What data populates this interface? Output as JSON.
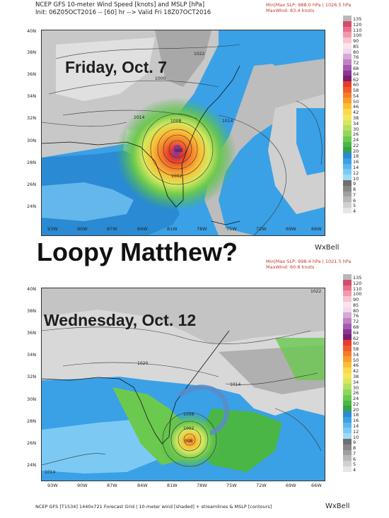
{
  "top_panel": {
    "header_line1": "NCEP GFS 10-meter Wind Speed [knots] and MSLP [hPa]",
    "header_line2": "Init: 06Z05OCT2016 -- [60] hr --> Valid Fri 18Z07OCT2016",
    "minmax_line1": "Min|Max SLP: 988.0 hPa | 1026.5 hPa",
    "minmax_line2": "MaxWind: 83.4 knots",
    "date_overlay": "Friday, Oct. 7",
    "isobar_labels": [
      "1022",
      "1000",
      "1008",
      "1014",
      "1014",
      "1014",
      "988",
      "1000",
      "1002",
      "1008"
    ]
  },
  "title": "Loopy Matthew?",
  "bottom_panel": {
    "minmax_line1": "Min|Max SLP: 998.4 hPa | 1021.5 hPa",
    "minmax_line2": "MaxWind: 60.6 knots",
    "date_overlay": "Wednesday, Oct. 12",
    "isobar_labels": [
      "1022",
      "1020",
      "1014",
      "1008",
      "1002",
      "998",
      "1014",
      "1002"
    ]
  },
  "brand": "WxBell",
  "footer": "NCEP GFS [T1534] 1440x721 Forecast Grid | 10-meter wind [shaded] + streamlines & MSLP [contours]",
  "axes": {
    "lat_labels_top": [
      "40N",
      "38N",
      "36N",
      "34N",
      "32N",
      "30N",
      "28N",
      "26N",
      "24N"
    ],
    "lat_labels_bottom": [
      "40N",
      "38N",
      "36N",
      "34N",
      "32N",
      "30N",
      "28N",
      "26N",
      "24N"
    ],
    "lon_labels": [
      "93W",
      "90W",
      "87W",
      "84W",
      "81W",
      "78W",
      "75W",
      "72W",
      "69W",
      "66W"
    ]
  },
  "colorbar": {
    "values": [
      "135",
      "120",
      "110",
      "100",
      "90",
      "85",
      "80",
      "76",
      "72",
      "68",
      "64",
      "62",
      "60",
      "58",
      "54",
      "50",
      "46",
      "42",
      "38",
      "34",
      "30",
      "26",
      "24",
      "22",
      "20",
      "18",
      "16",
      "14",
      "12",
      "10",
      "9",
      "8",
      "7",
      "6",
      "5",
      "4"
    ],
    "colors": [
      "#b8b8b8",
      "#d24c6b",
      "#e8708a",
      "#f39aa9",
      "#f6c5d0",
      "#fde3ea",
      "#f0d9ec",
      "#d7a9d6",
      "#c082c5",
      "#a45baf",
      "#8c3494",
      "#7b1f6d",
      "#e93b2c",
      "#ef5b2c",
      "#f47d2b",
      "#f99d2d",
      "#fbbd36",
      "#fcd84a",
      "#f5e65a",
      "#d6e85d",
      "#b4e060",
      "#8fd65a",
      "#6cc94f",
      "#4ab645",
      "#34a348",
      "#2a8ad3",
      "#3aa1e6",
      "#5ab6ef",
      "#7ccaf3",
      "#9edbf6",
      "#6f6f6f",
      "#888888",
      "#a0a0a0",
      "#b8b8b8",
      "#d0d0d0",
      "#e6e6e6"
    ]
  }
}
